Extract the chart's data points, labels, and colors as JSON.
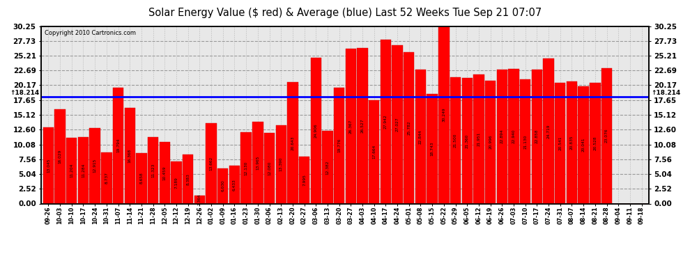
{
  "title": "Solar Energy Value ($ red) & Average (blue) Last 52 Weeks Tue Sep 21 07:07",
  "copyright": "Copyright 2010 Cartronics.com",
  "average": 18.214,
  "bar_color": "#ff0000",
  "avg_line_color": "#0000ff",
  "background_color": "#ffffff",
  "plot_bg_color": "#e8e8e8",
  "grid_color": "#aaaaaa",
  "yticks": [
    0.0,
    2.52,
    5.04,
    7.56,
    10.08,
    12.6,
    15.12,
    17.65,
    20.17,
    22.69,
    25.21,
    27.73,
    30.25
  ],
  "ylim": [
    0,
    30.25
  ],
  "categories": [
    "09-26",
    "10-03",
    "10-10",
    "10-17",
    "10-24",
    "10-31",
    "11-07",
    "11-14",
    "11-21",
    "11-28",
    "12-05",
    "12-12",
    "12-19",
    "12-26",
    "01-02",
    "01-09",
    "01-16",
    "01-23",
    "01-30",
    "02-06",
    "02-13",
    "02-20",
    "02-27",
    "03-06",
    "03-13",
    "03-20",
    "03-27",
    "04-03",
    "04-10",
    "04-17",
    "04-24",
    "05-01",
    "05-08",
    "05-15",
    "05-22",
    "05-29",
    "06-05",
    "06-12",
    "06-19",
    "06-26",
    "07-03",
    "07-10",
    "07-17",
    "07-24",
    "07-31",
    "08-07",
    "08-14",
    "08-21",
    "08-28",
    "09-04",
    "09-11",
    "09-18"
  ],
  "values": [
    13.045,
    16.029,
    11.204,
    11.284,
    12.915,
    8.737,
    19.794,
    16.368,
    8.658,
    11.323,
    10.459,
    7.189,
    8.383,
    1.364,
    13.662,
    6.03,
    6.433,
    12.13,
    13.965,
    12.08,
    13.39,
    20.643,
    7.995,
    24.906,
    12.382,
    19.776,
    26.367,
    26.527,
    17.664,
    27.942,
    27.027,
    25.782,
    22.844,
    18.743,
    30.249,
    21.5,
    21.36,
    21.951,
    20.996,
    22.894,
    22.94,
    21.13,
    22.858,
    24.719,
    20.541,
    20.835,
    20.041,
    20.528,
    23.076,
    0.0,
    0.0,
    0.0
  ]
}
